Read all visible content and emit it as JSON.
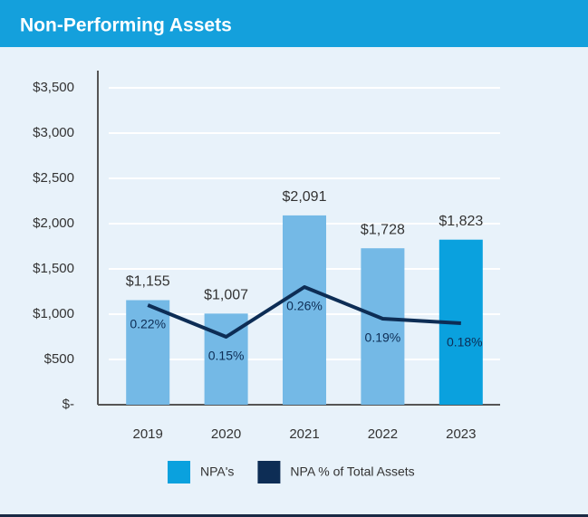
{
  "chart_data": {
    "type": "bar_line",
    "title": "Non-Performing Assets",
    "categories": [
      "2019",
      "2020",
      "2021",
      "2022",
      "2023"
    ],
    "series": [
      {
        "name": "NPA's",
        "type": "bar",
        "color": "#0aa1de",
        "bar_colors": [
          "#74b9e6",
          "#74b9e6",
          "#74b9e6",
          "#74b9e6",
          "#0aa1de"
        ],
        "values": [
          1155,
          1007,
          2091,
          1728,
          1823
        ],
        "value_labels": [
          "$1,155",
          "$1,007",
          "$2,091",
          "$1,728",
          "$1,823"
        ]
      },
      {
        "name": "NPA % of Total Assets",
        "type": "line",
        "axis": "y2",
        "color": "#0d2d55",
        "values": [
          0.22,
          0.15,
          0.26,
          0.19,
          0.18
        ],
        "value_labels": [
          "0.22%",
          "0.15%",
          "0.26%",
          "0.19%",
          "0.18%"
        ]
      }
    ],
    "ylim": [
      0,
      3500
    ],
    "yticks": [
      {
        "value": 0,
        "label": "$-"
      },
      {
        "value": 500,
        "label": "$500"
      },
      {
        "value": 1000,
        "label": "$1,000"
      },
      {
        "value": 1500,
        "label": "$1,500"
      },
      {
        "value": 2000,
        "label": "$2,000"
      },
      {
        "value": 2500,
        "label": "$2,500"
      },
      {
        "value": 3000,
        "label": "$3,000"
      },
      {
        "value": 3500,
        "label": "$3,500"
      }
    ],
    "y2lim": [
      0,
      0.7
    ],
    "grid": true,
    "legend": "bottom"
  }
}
